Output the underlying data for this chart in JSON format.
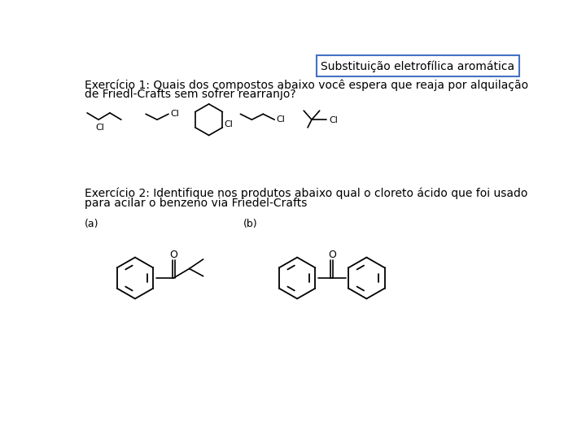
{
  "title_text": "Substituição eletrofílica aromática",
  "exercise1_line1": "Exercício 1: Quais dos compostos abaixo você espera que reaja por alquilação",
  "exercise1_line2": "de Friedl-Crafts sem sofrer rearranjo?",
  "exercise2_line1": "Exercício 2: Identifique nos produtos abaixo qual o cloreto ácido que foi usado",
  "exercise2_line2": "para acilar o benzeno via Friedel-Crafts",
  "label_a": "(a)",
  "label_b": "(b)",
  "bg_color": "#ffffff",
  "text_color": "#000000",
  "font_size_title": 10,
  "font_size_body": 10,
  "font_size_label": 9,
  "font_size_mol": 8
}
